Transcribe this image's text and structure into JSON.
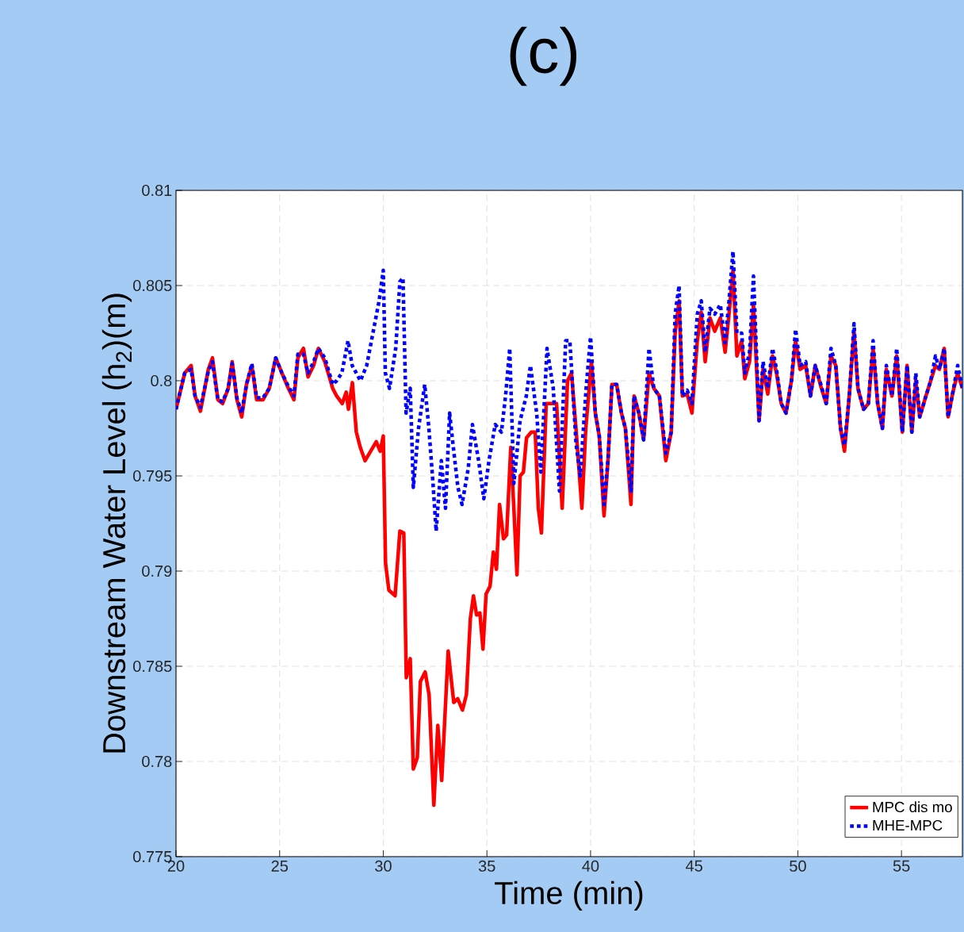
{
  "chart_data": {
    "type": "line",
    "title": "(c)",
    "xlabel": "Time (min)",
    "ylabel": "Downstream Water Level (h$_{2}$)(m)",
    "xlim": [
      20,
      57.94
    ],
    "ylim": [
      0.775,
      0.81
    ],
    "xticks": [
      20,
      25,
      30,
      35,
      40,
      45,
      50,
      55
    ],
    "yticks": [
      0.775,
      0.78,
      0.785,
      0.79,
      0.795,
      0.8,
      0.805,
      0.81
    ],
    "grid": true,
    "legend": "bottom right",
    "series": [
      {
        "name": "MPC dis mo",
        "color": "#ff0000",
        "line_style": "solid",
        "x": [
          20.0,
          20.42,
          20.73,
          20.92,
          21.18,
          21.56,
          21.76,
          22.02,
          22.25,
          22.52,
          22.71,
          22.94,
          23.17,
          23.4,
          23.66,
          23.89,
          24.2,
          24.5,
          24.81,
          25.11,
          25.42,
          25.69,
          25.88,
          26.15,
          26.37,
          26.64,
          26.87,
          27.18,
          27.56,
          27.75,
          28.02,
          28.21,
          28.32,
          28.51,
          28.7,
          28.89,
          29.12,
          29.39,
          29.66,
          29.85,
          30.0,
          30.11,
          30.27,
          30.57,
          30.8,
          30.99,
          31.11,
          31.3,
          31.45,
          31.64,
          31.79,
          32.02,
          32.21,
          32.44,
          32.63,
          32.82,
          33.13,
          33.4,
          33.59,
          33.82,
          34.01,
          34.2,
          34.35,
          34.5,
          34.66,
          34.81,
          34.96,
          35.15,
          35.31,
          35.46,
          35.61,
          35.8,
          35.95,
          36.15,
          36.3,
          36.45,
          36.6,
          36.76,
          36.91,
          37.14,
          37.33,
          37.48,
          37.63,
          37.86,
          38.13,
          38.36,
          38.63,
          38.89,
          39.08,
          39.31,
          39.58,
          39.77,
          40.04,
          40.23,
          40.42,
          40.65,
          40.84,
          41.03,
          41.26,
          41.49,
          41.68,
          41.95,
          42.1,
          42.33,
          42.56,
          42.82,
          43.05,
          43.32,
          43.63,
          43.89,
          44.08,
          44.27,
          44.43,
          44.66,
          44.89,
          45.15,
          45.34,
          45.53,
          45.76,
          45.99,
          46.26,
          46.49,
          46.68,
          46.87,
          47.06,
          47.29,
          47.44,
          47.67,
          47.86,
          48.13,
          48.32,
          48.55,
          48.78,
          48.97,
          49.2,
          49.43,
          49.69,
          49.89,
          50.11,
          50.38,
          50.61,
          50.84,
          51.11,
          51.37,
          51.6,
          51.83,
          52.06,
          52.25,
          52.48,
          52.71,
          52.9,
          53.17,
          53.4,
          53.63,
          53.85,
          54.08,
          54.27,
          54.54,
          54.77,
          55.04,
          55.27,
          55.5,
          55.69,
          55.88,
          56.18,
          56.41,
          56.64,
          56.83,
          57.06,
          57.25,
          57.48,
          57.71,
          57.94
        ],
        "values": [
          0.7985,
          0.8004,
          0.8008,
          0.7992,
          0.7984,
          0.8006,
          0.8012,
          0.799,
          0.7988,
          0.7996,
          0.801,
          0.799,
          0.7981,
          0.7998,
          0.8008,
          0.799,
          0.799,
          0.7996,
          0.8012,
          0.8004,
          0.7996,
          0.799,
          0.8012,
          0.8017,
          0.8002,
          0.8008,
          0.8017,
          0.801,
          0.7996,
          0.7992,
          0.7988,
          0.7994,
          0.7985,
          0.7999,
          0.7973,
          0.7965,
          0.7958,
          0.7963,
          0.7968,
          0.7963,
          0.7971,
          0.7904,
          0.789,
          0.7887,
          0.7921,
          0.792,
          0.7844,
          0.7854,
          0.7796,
          0.7802,
          0.7842,
          0.7847,
          0.7835,
          0.7777,
          0.7819,
          0.779,
          0.7858,
          0.7831,
          0.7833,
          0.7827,
          0.7835,
          0.7875,
          0.7887,
          0.7877,
          0.7878,
          0.7859,
          0.7888,
          0.7892,
          0.791,
          0.7901,
          0.7935,
          0.7917,
          0.7919,
          0.7965,
          0.7933,
          0.7898,
          0.795,
          0.7952,
          0.797,
          0.7973,
          0.7973,
          0.7933,
          0.792,
          0.7988,
          0.7988,
          0.7988,
          0.7933,
          0.8,
          0.8004,
          0.7973,
          0.7933,
          0.7975,
          0.801,
          0.7983,
          0.7971,
          0.7929,
          0.7958,
          0.7998,
          0.7998,
          0.7983,
          0.7975,
          0.7935,
          0.7992,
          0.7983,
          0.7969,
          0.8004,
          0.7996,
          0.7992,
          0.7958,
          0.7973,
          0.8025,
          0.8042,
          0.7992,
          0.7993,
          0.7983,
          0.8021,
          0.8036,
          0.801,
          0.8033,
          0.8026,
          0.8033,
          0.8015,
          0.8035,
          0.8058,
          0.8013,
          0.8021,
          0.8001,
          0.801,
          0.804,
          0.7979,
          0.8006,
          0.7993,
          0.8013,
          0.8004,
          0.7988,
          0.7983,
          0.8,
          0.8021,
          0.8006,
          0.8008,
          0.7992,
          0.8008,
          0.7997,
          0.7988,
          0.8013,
          0.8008,
          0.7975,
          0.7963,
          0.7992,
          0.8026,
          0.7996,
          0.7985,
          0.7988,
          0.8017,
          0.7988,
          0.7975,
          0.8006,
          0.7992,
          0.8013,
          0.7973,
          0.8008,
          0.7973,
          0.8,
          0.7981,
          0.7992,
          0.8,
          0.8008,
          0.8006,
          0.8017,
          0.7981,
          0.7994,
          0.8004,
          0.7996
        ]
      },
      {
        "name": "MHE-MPC",
        "color": "#0000ff",
        "line_style": "dotted",
        "x": [
          20.0,
          20.42,
          20.73,
          20.92,
          21.18,
          21.56,
          21.76,
          22.02,
          22.25,
          22.52,
          22.71,
          22.94,
          23.17,
          23.4,
          23.66,
          23.89,
          24.2,
          24.5,
          24.81,
          25.11,
          25.42,
          25.69,
          25.88,
          26.15,
          26.37,
          26.64,
          26.87,
          27.18,
          27.56,
          27.75,
          28.0,
          28.3,
          28.5,
          28.9,
          29.2,
          29.5,
          29.8,
          30.0,
          30.1,
          30.3,
          30.6,
          30.8,
          30.95,
          31.1,
          31.3,
          31.45,
          31.7,
          32.0,
          32.2,
          32.4,
          32.55,
          32.8,
          33.0,
          33.2,
          33.4,
          33.6,
          33.8,
          34.1,
          34.3,
          34.6,
          34.85,
          35.1,
          35.4,
          35.7,
          35.9,
          36.1,
          36.3,
          36.6,
          36.9,
          37.1,
          37.4,
          37.6,
          37.9,
          38.2,
          38.5,
          38.8,
          39.0,
          39.3,
          39.5,
          39.8,
          40.0,
          40.23,
          40.42,
          40.65,
          40.84,
          41.03,
          41.26,
          41.49,
          41.68,
          41.95,
          42.1,
          42.33,
          42.56,
          42.82,
          43.05,
          43.32,
          43.63,
          43.89,
          44.08,
          44.27,
          44.43,
          44.66,
          44.89,
          45.15,
          45.34,
          45.53,
          45.76,
          45.99,
          46.26,
          46.49,
          46.68,
          46.87,
          47.06,
          47.29,
          47.44,
          47.67,
          47.86,
          48.13,
          48.32,
          48.55,
          48.78,
          48.97,
          49.2,
          49.43,
          49.69,
          49.89,
          50.11,
          50.38,
          50.61,
          50.84,
          51.11,
          51.37,
          51.6,
          51.83,
          52.06,
          52.25,
          52.48,
          52.71,
          52.9,
          53.17,
          53.4,
          53.63,
          53.85,
          54.08,
          54.27,
          54.54,
          54.77,
          55.04,
          55.27,
          55.5,
          55.69,
          55.88,
          56.18,
          56.41,
          56.64,
          56.83,
          57.06,
          57.25,
          57.48,
          57.71,
          57.94
        ],
        "values": [
          0.7985,
          0.8004,
          0.8006,
          0.7992,
          0.7986,
          0.8005,
          0.801,
          0.799,
          0.7989,
          0.7996,
          0.8009,
          0.7991,
          0.7983,
          0.7998,
          0.8009,
          0.7991,
          0.7991,
          0.7996,
          0.8012,
          0.8004,
          0.7997,
          0.7992,
          0.8014,
          0.8014,
          0.8004,
          0.801,
          0.8017,
          0.8012,
          0.7998,
          0.8,
          0.8004,
          0.8021,
          0.8008,
          0.8,
          0.8008,
          0.8025,
          0.8042,
          0.8058,
          0.8004,
          0.7996,
          0.8017,
          0.8052,
          0.8054,
          0.7983,
          0.7996,
          0.7944,
          0.7975,
          0.7998,
          0.7975,
          0.7946,
          0.7921,
          0.7958,
          0.7933,
          0.7983,
          0.7963,
          0.7944,
          0.7935,
          0.7954,
          0.7977,
          0.7958,
          0.7938,
          0.7958,
          0.7977,
          0.7973,
          0.7992,
          0.8017,
          0.7946,
          0.7979,
          0.7992,
          0.8008,
          0.7983,
          0.7952,
          0.8017,
          0.7996,
          0.7942,
          0.8021,
          0.8021,
          0.7967,
          0.795,
          0.7998,
          0.8023,
          0.7983,
          0.7971,
          0.7935,
          0.7958,
          0.7998,
          0.7998,
          0.7983,
          0.7975,
          0.7942,
          0.7992,
          0.7983,
          0.7969,
          0.8017,
          0.7996,
          0.7992,
          0.7962,
          0.7973,
          0.8035,
          0.805,
          0.7992,
          0.7995,
          0.7988,
          0.8035,
          0.8042,
          0.8015,
          0.8038,
          0.8035,
          0.804,
          0.802,
          0.8042,
          0.8068,
          0.8025,
          0.8025,
          0.8004,
          0.8015,
          0.8055,
          0.7979,
          0.801,
          0.7996,
          0.8017,
          0.8006,
          0.7988,
          0.7983,
          0.8,
          0.8027,
          0.8008,
          0.801,
          0.7992,
          0.8008,
          0.7998,
          0.7988,
          0.8017,
          0.8008,
          0.7975,
          0.7966,
          0.7992,
          0.803,
          0.7996,
          0.7985,
          0.7988,
          0.8021,
          0.7988,
          0.7975,
          0.8008,
          0.7992,
          0.8017,
          0.7973,
          0.8008,
          0.7973,
          0.8004,
          0.7981,
          0.7992,
          0.8,
          0.8013,
          0.8006,
          0.8017,
          0.7981,
          0.7994,
          0.8008,
          0.7996
        ]
      }
    ]
  }
}
